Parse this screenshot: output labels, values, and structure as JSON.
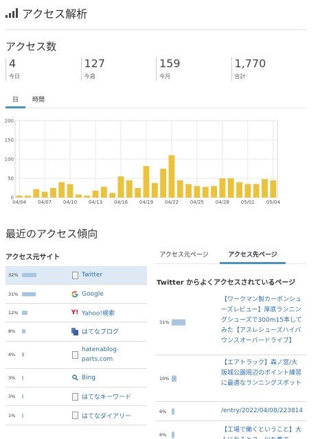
{
  "header": {
    "title": "アクセス解析"
  },
  "access_count": {
    "title": "アクセス数",
    "stats": [
      {
        "value": "4",
        "label": "今日"
      },
      {
        "value": "127",
        "label": "今週"
      },
      {
        "value": "159",
        "label": "今月"
      },
      {
        "value": "1,770",
        "label": "合計"
      }
    ]
  },
  "period_tabs": [
    {
      "label": "日",
      "active": true
    },
    {
      "label": "時間",
      "active": false
    }
  ],
  "chart_data": {
    "type": "bar",
    "ylim": [
      0,
      200
    ],
    "yticks": [
      "0",
      "50",
      "100",
      "150",
      "200"
    ],
    "x_tick_labels": [
      "04/04",
      "04/07",
      "04/10",
      "04/13",
      "04/16",
      "04/19",
      "04/22",
      "04/25",
      "04/28",
      "05/01",
      "05/04"
    ],
    "values": [
      5,
      5,
      22,
      15,
      25,
      40,
      35,
      8,
      5,
      18,
      28,
      12,
      55,
      45,
      25,
      82,
      38,
      75,
      110,
      45,
      35,
      30,
      28,
      30,
      50,
      50,
      40,
      35,
      35,
      48,
      45
    ],
    "color": "#ebc23b"
  },
  "recent": {
    "title": "最近のアクセス傾向"
  },
  "source": {
    "title": "アクセス元サイト",
    "items": [
      {
        "pct": "32%",
        "pct_value": 32,
        "icon": "document-icon",
        "name": "Twitter"
      },
      {
        "pct": "31%",
        "pct_value": 31,
        "icon": "google-icon",
        "name": "Google"
      },
      {
        "pct": "12%",
        "pct_value": 12,
        "icon": "yahoo-icon",
        "name": "Yahoo!検索"
      },
      {
        "pct": "8%",
        "pct_value": 8,
        "icon": "hatena-blog-icon",
        "name": "はてなブログ"
      },
      {
        "pct": "4%",
        "pct_value": 4,
        "icon": "document-icon",
        "name": "hatenablog-parts.com"
      },
      {
        "pct": "3%",
        "pct_value": 3,
        "icon": "search-icon",
        "name": "Bing"
      },
      {
        "pct": "3%",
        "pct_value": 3,
        "icon": "document-icon",
        "name": "はてなキーワード"
      },
      {
        "pct": "1%",
        "pct_value": 1,
        "icon": "document-icon",
        "name": "はてなダイアリー"
      }
    ]
  },
  "dest_tabs": [
    {
      "label": "アクセス元ページ",
      "active": false
    },
    {
      "label": "アクセス先ページ",
      "active": true
    }
  ],
  "dest": {
    "title": "Twitter からよくアクセスされているページ",
    "items": [
      {
        "pct": "31%",
        "pct_value": 31,
        "text": "【ワークマン製カーボンシューズレビュー】厚底ランニングシューズで300m15本してみた【アスレシューズハイバウンスオーバードライブ】"
      },
      {
        "pct": "10%",
        "pct_value": 10,
        "text": "【エアトラック】森ノ宮/大阪城公園周辺のポイント練習に最適なランニングスポット"
      },
      {
        "pct": "6%",
        "pct_value": 6,
        "text": "/entry/2022/04/08/223814"
      },
      {
        "pct": "6%",
        "pct_value": 6,
        "text": "【工場で働くということ】大人になるとスーツを着て"
      }
    ]
  }
}
